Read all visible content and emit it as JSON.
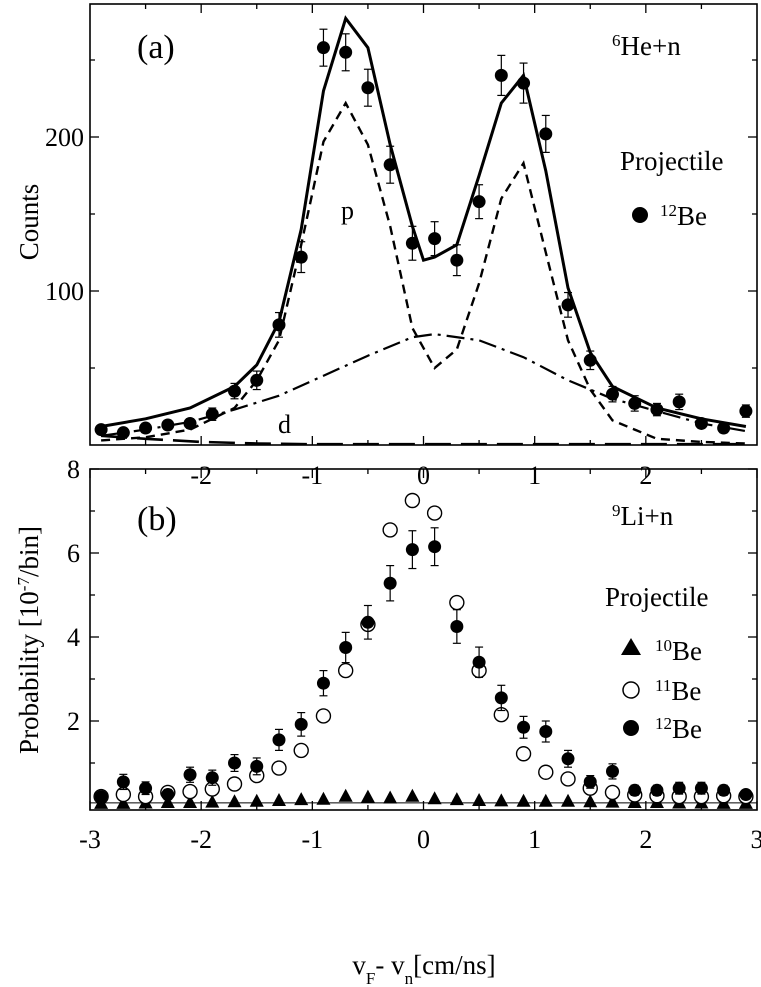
{
  "chart_data": [
    {
      "panel_label": "(a)",
      "type": "scatter",
      "reaction": {
        "sup": "6",
        "text": "He+n"
      },
      "ylabel": "Counts",
      "legend_title": "Projectile",
      "x_ticks": [
        "-2",
        "-1",
        "0",
        "1",
        "2"
      ],
      "y_ticks": [
        "100",
        "200"
      ],
      "xlim": [
        -3,
        3
      ],
      "ylim": [
        0,
        280
      ],
      "curve_labels": {
        "p": "p",
        "d": "d"
      },
      "series": [
        {
          "marker": "filled-circle",
          "legend_sup": "12",
          "legend_text": "Be",
          "x": [
            -2.9,
            -2.7,
            -2.5,
            -2.3,
            -2.1,
            -1.9,
            -1.7,
            -1.5,
            -1.3,
            -1.1,
            -0.9,
            -0.7,
            -0.5,
            -0.3,
            -0.1,
            0.1,
            0.3,
            0.5,
            0.7,
            0.9,
            1.1,
            1.3,
            1.5,
            1.7,
            1.9,
            2.1,
            2.3,
            2.5,
            2.7,
            2.9
          ],
          "y": [
            10,
            8,
            11,
            13,
            14,
            20,
            35,
            42,
            78,
            122,
            258,
            255,
            232,
            182,
            131,
            134,
            120,
            158,
            240,
            235,
            202,
            91,
            55,
            33,
            27,
            23,
            28,
            14,
            11,
            22
          ],
          "err": [
            2,
            2,
            3,
            3,
            3,
            4,
            5,
            6,
            8,
            10,
            12,
            12,
            12,
            12,
            11,
            11,
            10,
            11,
            13,
            13,
            12,
            8,
            6,
            5,
            5,
            4,
            5,
            3,
            3,
            4
          ]
        }
      ],
      "curves": [
        {
          "name": "total",
          "style": "solid",
          "x": [
            -2.9,
            -2.5,
            -2.1,
            -1.7,
            -1.5,
            -1.3,
            -1.1,
            -0.9,
            -0.7,
            -0.5,
            -0.3,
            -0.1,
            0.0,
            0.1,
            0.3,
            0.5,
            0.7,
            0.9,
            1.1,
            1.3,
            1.5,
            1.7,
            2.1,
            2.5,
            2.9
          ],
          "y": [
            12,
            17,
            24,
            38,
            52,
            80,
            140,
            230,
            277,
            258,
            195,
            142,
            120,
            122,
            130,
            175,
            222,
            240,
            178,
            102,
            60,
            38,
            24,
            17,
            12
          ]
        },
        {
          "name": "p",
          "style": "dashed",
          "x": [
            -2.9,
            -2.5,
            -2.1,
            -1.7,
            -1.5,
            -1.3,
            -1.1,
            -0.9,
            -0.7,
            -0.5,
            -0.3,
            -0.1,
            0.1,
            0.3,
            0.5,
            0.7,
            0.9,
            1.1,
            1.3,
            1.5,
            1.7,
            2.1,
            2.5,
            2.9
          ],
          "y": [
            3,
            5,
            10,
            24,
            42,
            68,
            130,
            197,
            222,
            195,
            142,
            76,
            50,
            62,
            105,
            160,
            183,
            125,
            68,
            36,
            16,
            4,
            2,
            1
          ]
        },
        {
          "name": "s",
          "style": "dashdot",
          "x": [
            -2.9,
            -2.5,
            -2.1,
            -1.7,
            -1.3,
            -0.9,
            -0.5,
            -0.1,
            0.1,
            0.5,
            0.9,
            1.3,
            1.7,
            2.1,
            2.5,
            2.9
          ],
          "y": [
            6,
            10,
            15,
            23,
            32,
            45,
            58,
            70,
            72,
            68,
            57,
            42,
            30,
            22,
            14,
            9
          ]
        },
        {
          "name": "d",
          "style": "longdash",
          "x": [
            -2.9,
            -2.5,
            -2.0,
            -1.5,
            -1.0,
            0.0,
            1.0,
            2.0,
            2.5,
            2.9
          ],
          "y": [
            6,
            4,
            2,
            1,
            0.5,
            0.5,
            0.5,
            0.5,
            0.5,
            0.5
          ]
        }
      ]
    },
    {
      "panel_label": "(b)",
      "type": "scatter",
      "reaction": {
        "sup": "9",
        "text": "Li+n"
      },
      "ylabel": "Probability  [10",
      "ylabel_sup": "-7",
      "ylabel_end": "/bin]",
      "legend_title": "Projectile",
      "x_ticks": [
        "-3",
        "-2",
        "-1",
        "0",
        "1",
        "2",
        "3"
      ],
      "y_ticks": [
        "2",
        "4",
        "6",
        "8"
      ],
      "xlim": [
        -3,
        3
      ],
      "ylim": [
        0,
        8
      ],
      "xlabel": {
        "main": "v",
        "sub1": "F",
        "mid": "- v",
        "sub2": "n",
        "end": "[cm/ns]"
      },
      "series": [
        {
          "marker": "filled-triangle",
          "legend_sup": "10",
          "legend_text": "Be",
          "x": [
            -2.9,
            -2.7,
            -2.5,
            -2.3,
            -2.1,
            -1.9,
            -1.7,
            -1.5,
            -1.3,
            -1.1,
            -0.9,
            -0.7,
            -0.5,
            -0.3,
            -0.1,
            0.1,
            0.3,
            0.5,
            0.7,
            0.9,
            1.1,
            1.3,
            1.5,
            1.7,
            1.9,
            2.1,
            2.3,
            2.5,
            2.7,
            2.9
          ],
          "y": [
            0.05,
            0.05,
            0.06,
            0.07,
            0.07,
            0.08,
            0.09,
            0.1,
            0.12,
            0.14,
            0.15,
            0.22,
            0.2,
            0.18,
            0.22,
            0.16,
            0.14,
            0.12,
            0.11,
            0.1,
            0.1,
            0.1,
            0.09,
            0.08,
            0.07,
            0.07,
            0.06,
            0.06,
            0.05,
            0.05
          ]
        },
        {
          "marker": "open-circle",
          "legend_sup": "11",
          "legend_text": "Be",
          "x": [
            -2.9,
            -2.7,
            -2.5,
            -2.3,
            -2.1,
            -1.9,
            -1.7,
            -1.5,
            -1.3,
            -1.1,
            -0.9,
            -0.7,
            -0.5,
            -0.3,
            -0.1,
            0.1,
            0.3,
            0.5,
            0.7,
            0.9,
            1.1,
            1.3,
            1.5,
            1.7,
            1.9,
            2.1,
            2.3,
            2.5,
            2.7,
            2.9
          ],
          "y": [
            0.2,
            0.25,
            0.2,
            0.3,
            0.32,
            0.38,
            0.5,
            0.7,
            0.88,
            1.3,
            2.12,
            3.2,
            4.3,
            6.55,
            7.25,
            6.95,
            4.82,
            3.2,
            2.15,
            1.22,
            0.78,
            0.62,
            0.4,
            0.3,
            0.24,
            0.22,
            0.2,
            0.2,
            0.22,
            0.2
          ]
        },
        {
          "marker": "filled-circle",
          "legend_sup": "12",
          "legend_text": "Be",
          "x": [
            -2.9,
            -2.7,
            -2.5,
            -2.3,
            -2.1,
            -1.9,
            -1.7,
            -1.5,
            -1.3,
            -1.1,
            -0.9,
            -0.7,
            -0.5,
            -0.3,
            -0.1,
            0.1,
            0.3,
            0.5,
            0.7,
            0.9,
            1.1,
            1.3,
            1.5,
            1.7,
            1.9,
            2.1,
            2.3,
            2.5,
            2.7,
            2.9
          ],
          "y": [
            0.2,
            0.55,
            0.4,
            0.25,
            0.72,
            0.65,
            1.0,
            0.92,
            1.55,
            1.92,
            2.9,
            3.75,
            4.35,
            5.28,
            6.08,
            6.15,
            4.25,
            3.4,
            2.55,
            1.85,
            1.75,
            1.1,
            0.55,
            0.8,
            0.35,
            0.35,
            0.4,
            0.4,
            0.35,
            0.25
          ],
          "err": [
            0.1,
            0.18,
            0.15,
            0.12,
            0.18,
            0.18,
            0.2,
            0.2,
            0.25,
            0.28,
            0.3,
            0.36,
            0.4,
            0.42,
            0.45,
            0.45,
            0.4,
            0.36,
            0.3,
            0.26,
            0.25,
            0.2,
            0.15,
            0.18,
            0.12,
            0.12,
            0.14,
            0.14,
            0.12,
            0.1
          ]
        }
      ]
    }
  ]
}
